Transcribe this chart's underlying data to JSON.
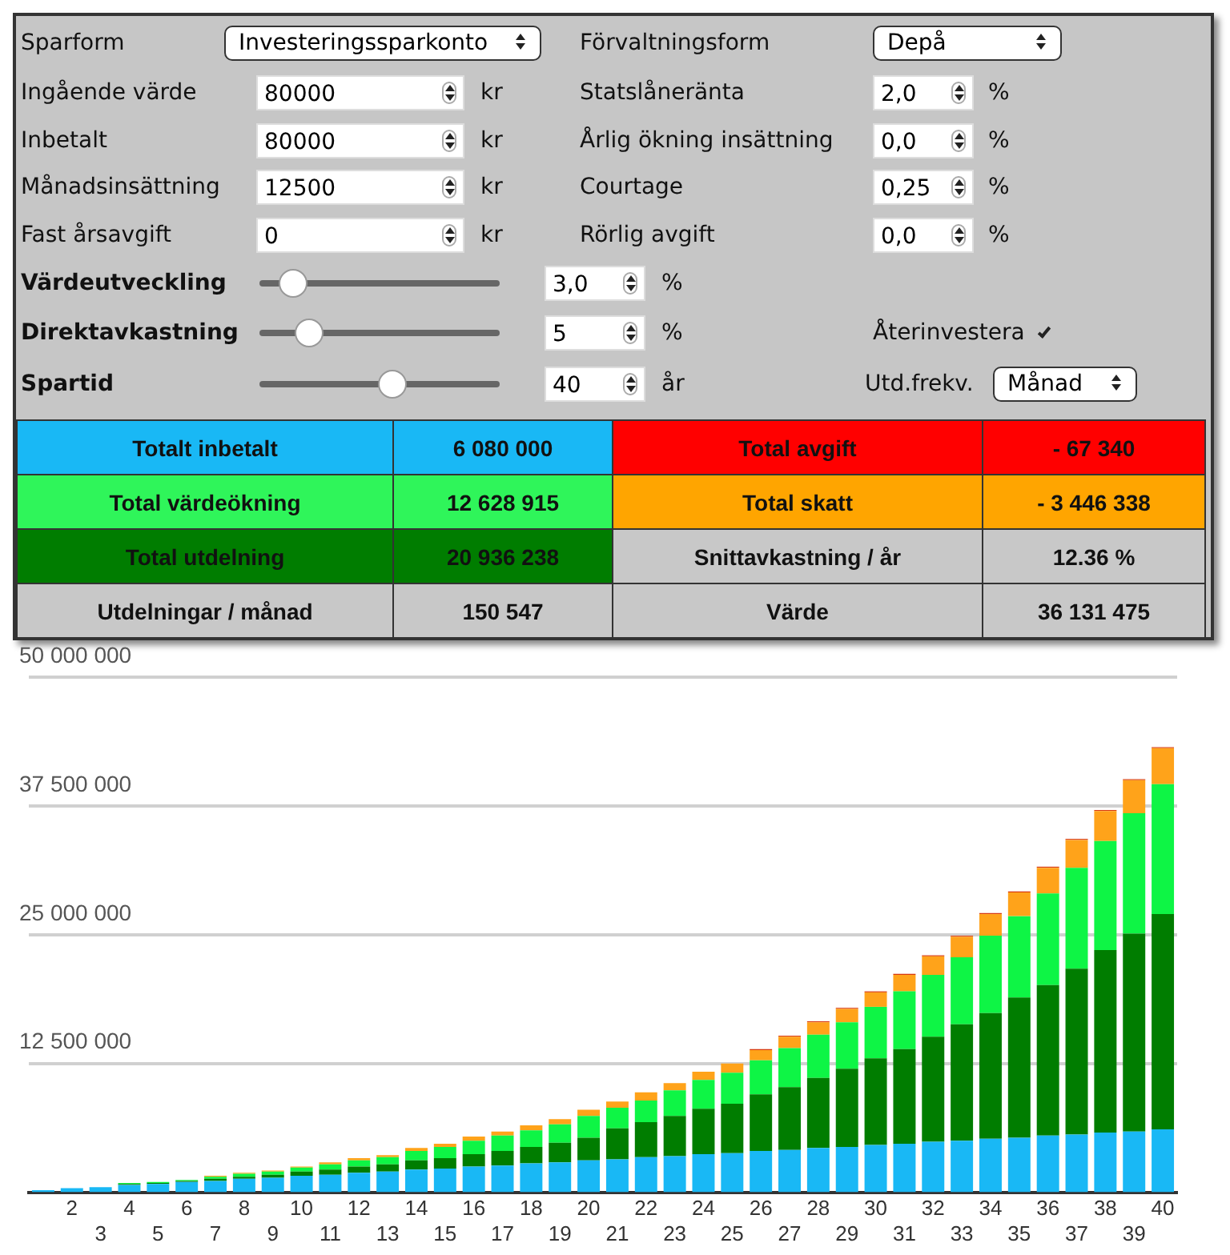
{
  "chart_data": [
    {
      "type": "other",
      "annotations": [
        "Sparform",
        "Investeringssparkonto",
        "Förvaltningsform",
        "Depå",
        "Ingående värde",
        "80000",
        "kr",
        "Statslåneränta",
        "2,0",
        "%",
        "Inbetalt",
        "80000",
        "kr",
        "Årlig ökning insättning",
        "0,0",
        "%",
        "Månadsinsättning",
        "12500",
        "kr",
        "Courtage",
        "0,25",
        "%",
        "Fast årsavgift",
        "0",
        "kr",
        "Rörlig avgift",
        "0,0",
        "%",
        "Värdeutveckling",
        "3,0",
        "%",
        "Direktavkastning",
        "5",
        "%",
        "Återinvestera",
        "Spartid",
        "40",
        "år",
        "Utd.frekv.",
        "Månad",
        "Totalt inbetalt",
        "6 080 000",
        "Total avgift",
        "- 67 340",
        "Total värdeökning",
        "12 628 915",
        "Total skatt",
        "- 3 446 338",
        "Total utdelning",
        "20 936 238",
        "Snittavkastning / år",
        "12.36 %",
        "Utdelningar / månad",
        "150 547",
        "Värde",
        "36 131 475"
      ]
    },
    {
      "type": "bar",
      "stacked": true,
      "grid": "y",
      "legend": false,
      "categories": [
        null,
        "2",
        "3",
        "4",
        "5",
        "6",
        "7",
        "8",
        "9",
        "10",
        "11",
        "12",
        "13",
        "14",
        "15",
        "16",
        "17",
        "18",
        "19",
        "20",
        "21",
        "22",
        "23",
        "24",
        "25",
        "26",
        "27",
        "28",
        "29",
        "30",
        "31",
        "32",
        "33",
        "34",
        "35",
        "36",
        "37",
        "38",
        "39",
        "40"
      ],
      "ylim": [
        0,
        50000000
      ],
      "yticks": [
        {
          "value": 12500000,
          "label": "12 500 000"
        },
        {
          "value": 25000000,
          "label": "25 000 000"
        },
        {
          "value": 37500000,
          "label": "37 500 000"
        },
        {
          "value": 50000000,
          "label": "50 000 000"
        }
      ],
      "series": [
        {
          "color": "#19b8f5",
          "values": [
            200000,
            400000,
            500000,
            700000,
            800000,
            1000000,
            1100000,
            1300000,
            1400000,
            1600000,
            1700000,
            1900000,
            2000000,
            2200000,
            2300000,
            2500000,
            2600000,
            2800000,
            2900000,
            3100000,
            3200000,
            3400000,
            3500000,
            3700000,
            3800000,
            4000000,
            4100000,
            4300000,
            4400000,
            4600000,
            4700000,
            4900000,
            5000000,
            5200000,
            5300000,
            5500000,
            5600000,
            5800000,
            5900000,
            6100000
          ]
        },
        {
          "color": "#007d00",
          "values": [
            0,
            0,
            0,
            100000,
            100000,
            100000,
            200000,
            200000,
            300000,
            400000,
            500000,
            600000,
            700000,
            900000,
            1000000,
            1200000,
            1400000,
            1600000,
            1900000,
            2200000,
            3000000,
            3400000,
            3900000,
            4400000,
            4800000,
            5500000,
            6100000,
            6800000,
            7600000,
            8400000,
            9200000,
            10200000,
            11300000,
            12200000,
            13600000,
            14600000,
            16100000,
            17700000,
            19200000,
            20900000
          ]
        },
        {
          "color": "#0ef545",
          "values": [
            0,
            0,
            0,
            100000,
            100000,
            100000,
            200000,
            300000,
            300000,
            400000,
            500000,
            600000,
            700000,
            900000,
            1100000,
            1300000,
            1500000,
            1600000,
            1800000,
            2100000,
            2000000,
            2100000,
            2500000,
            2800000,
            3000000,
            3300000,
            3800000,
            4200000,
            4500000,
            5000000,
            5600000,
            6000000,
            6500000,
            7500000,
            7900000,
            8900000,
            9800000,
            10600000,
            11700000,
            12600000
          ]
        },
        {
          "color": "#ffa31a",
          "values": [
            0,
            0,
            0,
            0,
            0,
            0,
            100000,
            100000,
            100000,
            100000,
            200000,
            200000,
            200000,
            300000,
            300000,
            400000,
            400000,
            500000,
            500000,
            600000,
            600000,
            800000,
            700000,
            800000,
            900000,
            1000000,
            1100000,
            1200000,
            1300000,
            1400000,
            1600000,
            1800000,
            2000000,
            2100000,
            2300000,
            2500000,
            2700000,
            2900000,
            3200000,
            3500000
          ]
        },
        {
          "color": "#d83a10",
          "values": [
            0,
            0,
            0,
            0,
            0,
            0,
            0,
            0,
            0,
            0,
            0,
            0,
            0,
            0,
            0,
            0,
            0,
            0,
            0,
            0,
            0,
            0,
            0,
            0,
            0,
            100000,
            100000,
            100000,
            100000,
            100000,
            100000,
            100000,
            100000,
            100000,
            100000,
            100000,
            100000,
            100000,
            100000,
            100000
          ]
        }
      ]
    }
  ]
}
